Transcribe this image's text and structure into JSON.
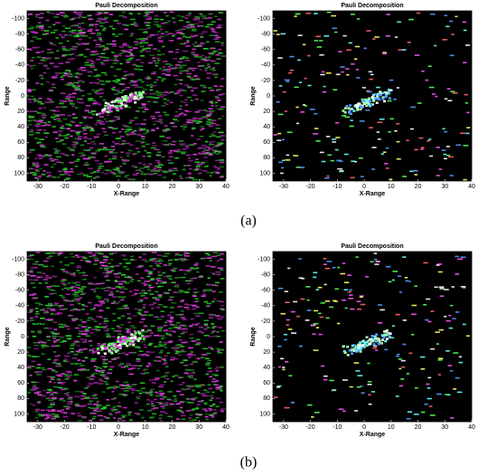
{
  "chart_data": [
    {
      "type": "image",
      "title": "Pauli Decomposition",
      "xlabel": "X-Range",
      "ylabel": "Range",
      "xlim": [
        -34,
        40
      ],
      "ylim": [
        110,
        -110
      ],
      "xticks": [
        -30,
        -20,
        -10,
        0,
        10,
        20,
        30,
        40
      ],
      "yticks": [
        -100,
        -80,
        -60,
        -40,
        -20,
        0,
        20,
        40,
        60,
        80,
        100
      ]
    },
    {
      "type": "image",
      "title": "Pauli Decomposition",
      "xlabel": "X-Range",
      "ylabel": "Range",
      "xlim": [
        -34,
        40
      ],
      "ylim": [
        110,
        -110
      ],
      "xticks": [
        -30,
        -20,
        -10,
        0,
        10,
        20,
        30,
        40
      ],
      "yticks": [
        -100,
        -80,
        -60,
        -40,
        -20,
        0,
        20,
        40,
        60,
        80,
        100
      ]
    },
    {
      "type": "image",
      "title": "Pauli Decomposition",
      "xlabel": "X-Range",
      "ylabel": "Range",
      "xlim": [
        -34,
        40
      ],
      "ylim": [
        110,
        -110
      ],
      "xticks": [
        -30,
        -20,
        -10,
        0,
        10,
        20,
        30,
        40
      ],
      "yticks": [
        -100,
        -80,
        -60,
        -40,
        -20,
        0,
        20,
        40,
        60,
        80,
        100
      ]
    },
    {
      "type": "image",
      "title": "Pauli Decomposition",
      "xlabel": "X-Range",
      "ylabel": "Range",
      "xlim": [
        -34,
        40
      ],
      "ylim": [
        110,
        -110
      ],
      "xticks": [
        -30,
        -20,
        -10,
        0,
        10,
        20,
        30,
        40
      ],
      "yticks": [
        -100,
        -80,
        -60,
        -40,
        -20,
        0,
        20,
        40,
        60,
        80,
        100
      ]
    }
  ],
  "captions": [
    "(a)",
    "(b)"
  ]
}
